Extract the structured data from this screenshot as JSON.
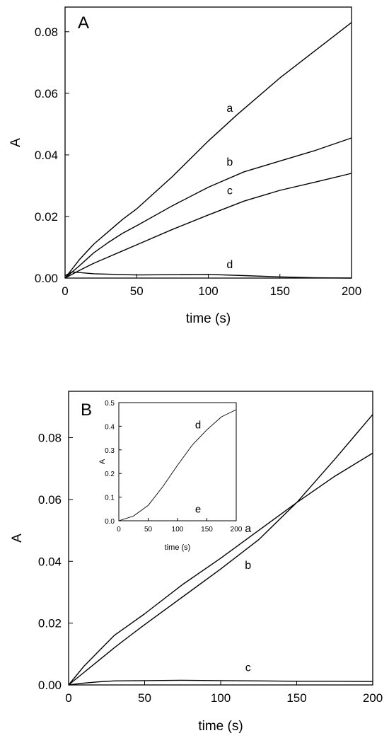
{
  "chart_data": [
    {
      "type": "line",
      "panel_label": "A",
      "xlabel": "time (s)",
      "ylabel": "A",
      "xlim": [
        0,
        200
      ],
      "ylim": [
        0,
        0.088
      ],
      "xticks": [
        "0",
        "50",
        "100",
        "150",
        "200"
      ],
      "yticks": [
        "0.00",
        "0.02",
        "0.04",
        "0.06",
        "0.08"
      ],
      "series": [
        {
          "name": "a",
          "x": [
            0,
            10,
            20,
            30,
            40,
            50,
            75,
            100,
            120,
            150,
            175,
            200
          ],
          "y": [
            0,
            0.006,
            0.011,
            0.015,
            0.019,
            0.0225,
            0.033,
            0.0445,
            0.053,
            0.065,
            0.074,
            0.083
          ]
        },
        {
          "name": "b",
          "x": [
            0,
            10,
            20,
            30,
            40,
            50,
            75,
            100,
            125,
            150,
            175,
            200
          ],
          "y": [
            0,
            0.004,
            0.0082,
            0.0115,
            0.0145,
            0.017,
            0.0235,
            0.0295,
            0.0345,
            0.038,
            0.0415,
            0.0455
          ]
        },
        {
          "name": "c",
          "x": [
            0,
            10,
            20,
            30,
            40,
            50,
            75,
            100,
            125,
            150,
            175,
            200
          ],
          "y": [
            0,
            0.0025,
            0.0048,
            0.0068,
            0.0088,
            0.0108,
            0.0158,
            0.0205,
            0.025,
            0.0285,
            0.0312,
            0.034
          ]
        },
        {
          "name": "d",
          "x": [
            0,
            5,
            10,
            20,
            50,
            75,
            100,
            125,
            150,
            175,
            200
          ],
          "y": [
            0.0008,
            0.002,
            0.0018,
            0.0014,
            0.001,
            0.0011,
            0.0012,
            0.0008,
            0.0004,
            0.0001,
            0
          ]
        }
      ],
      "labels": [
        {
          "text": "a",
          "x": 115,
          "y": 0.054
        },
        {
          "text": "b",
          "x": 115,
          "y": 0.0365
        },
        {
          "text": "c",
          "x": 115,
          "y": 0.0272
        },
        {
          "text": "d",
          "x": 115,
          "y": 0.0032
        }
      ]
    },
    {
      "type": "line",
      "panel_label": "B",
      "xlabel": "time (s)",
      "ylabel": "A",
      "xlim": [
        0,
        200
      ],
      "ylim": [
        0,
        0.095
      ],
      "xticks": [
        "0",
        "50",
        "100",
        "150",
        "200"
      ],
      "yticks": [
        "0.00",
        "0.02",
        "0.04",
        "0.06",
        "0.08"
      ],
      "series": [
        {
          "name": "a",
          "x": [
            0,
            10,
            20,
            30,
            40,
            50,
            75,
            100,
            125,
            150,
            175,
            200
          ],
          "y": [
            0,
            0.006,
            0.011,
            0.016,
            0.0195,
            0.023,
            0.0325,
            0.041,
            0.05,
            0.059,
            0.0675,
            0.075
          ]
        },
        {
          "name": "b",
          "x": [
            0,
            10,
            20,
            30,
            40,
            50,
            75,
            100,
            125,
            150,
            175,
            200
          ],
          "y": [
            0,
            0.004,
            0.008,
            0.012,
            0.0158,
            0.0195,
            0.0285,
            0.0375,
            0.047,
            0.059,
            0.073,
            0.0875
          ]
        },
        {
          "name": "c",
          "x": [
            0,
            10,
            20,
            30,
            50,
            75,
            100,
            125,
            150,
            175,
            200
          ],
          "y": [
            0,
            0.0006,
            0.001,
            0.0013,
            0.0014,
            0.0015,
            0.0014,
            0.0013,
            0.0012,
            0.0012,
            0.0011
          ]
        }
      ],
      "labels": [
        {
          "text": "a",
          "x": 118,
          "y": 0.0495
        },
        {
          "text": "b",
          "x": 118,
          "y": 0.0375
        },
        {
          "text": "c",
          "x": 118,
          "y": 0.0045
        }
      ],
      "inset": {
        "type": "line",
        "xlabel": "time (s)",
        "ylabel": "A",
        "xlim": [
          0,
          200
        ],
        "ylim": [
          0,
          0.5
        ],
        "xticks": [
          "0",
          "50",
          "100",
          "150",
          "200"
        ],
        "yticks": [
          "0.0",
          "0.1",
          "0.2",
          "0.3",
          "0.4",
          "0.5"
        ],
        "series": [
          {
            "name": "d",
            "x": [
              0,
              25,
              50,
              75,
              100,
              125,
              150,
              175,
              200
            ],
            "y": [
              0,
              0.02,
              0.065,
              0.145,
              0.235,
              0.32,
              0.385,
              0.44,
              0.47
            ]
          },
          {
            "name": "e",
            "x": [
              0,
              200
            ],
            "y": [
              0,
              0
            ]
          }
        ],
        "labels": [
          {
            "text": "d",
            "x": 135,
            "y": 0.39
          },
          {
            "text": "e",
            "x": 135,
            "y": 0.035
          }
        ]
      }
    }
  ]
}
